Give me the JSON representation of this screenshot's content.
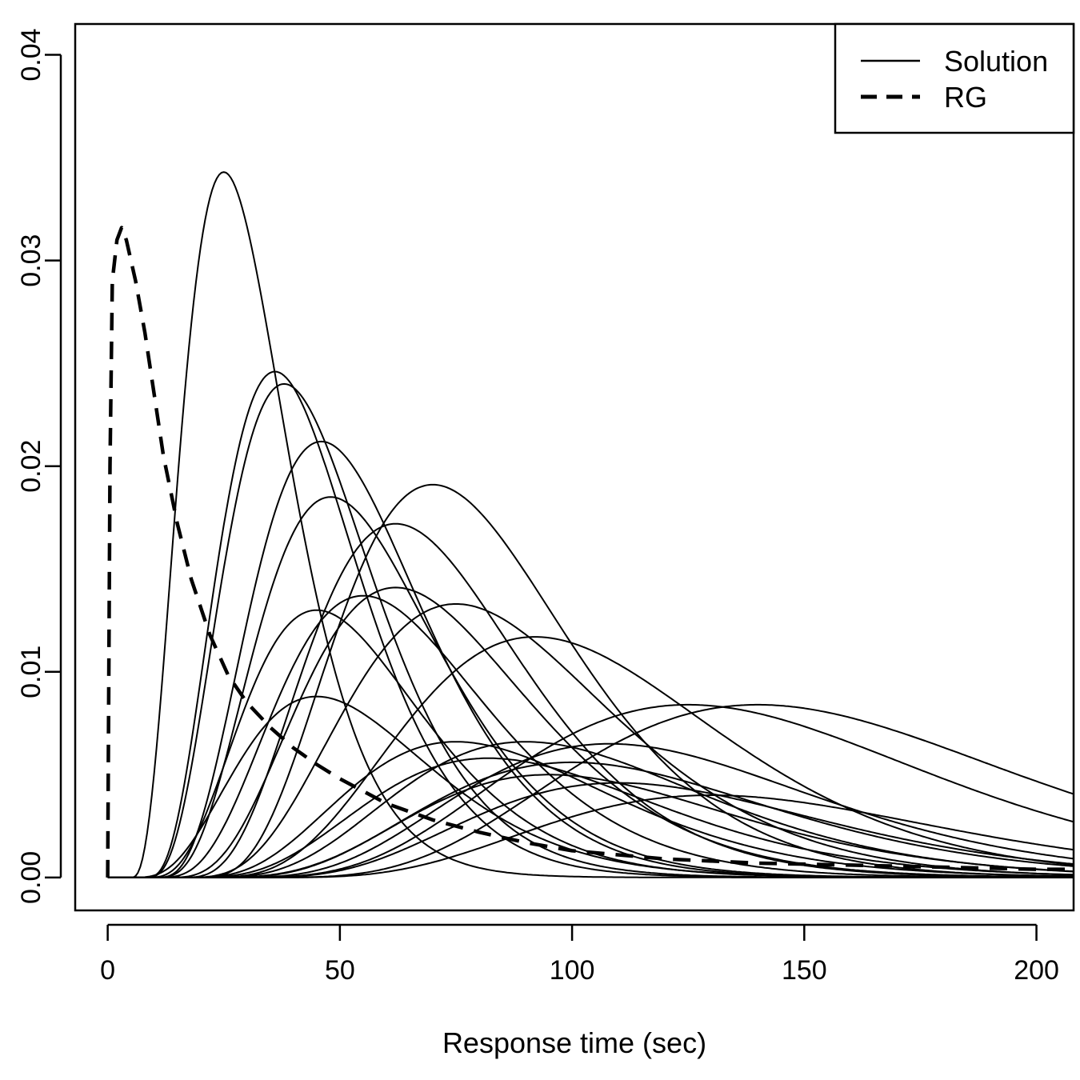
{
  "chart_data": {
    "type": "line",
    "title": "",
    "xlabel": "Response time (sec)",
    "ylabel": "",
    "xlim": [
      -7,
      208
    ],
    "ylim": [
      -0.0016,
      0.0415
    ],
    "x_ticks": [
      0,
      50,
      100,
      150,
      200
    ],
    "x_tick_labels": [
      "0",
      "50",
      "100",
      "150",
      "200"
    ],
    "y_ticks": [
      0.0,
      0.01,
      0.02,
      0.03,
      0.04
    ],
    "y_tick_labels": [
      "0.00",
      "0.01",
      "0.02",
      "0.03",
      "0.04"
    ],
    "grid": false,
    "legend": {
      "position": "top-right",
      "entries": [
        {
          "label": "Solution",
          "style": "solid"
        },
        {
          "label": "RG",
          "style": "dashed"
        }
      ]
    },
    "line_color": "#000000",
    "series": [
      {
        "style": "solid",
        "shape": "gamma",
        "start": 5,
        "mode": 25,
        "peak": 0.0343
      },
      {
        "style": "solid",
        "shape": "gamma",
        "start": 8,
        "mode": 36,
        "peak": 0.0246
      },
      {
        "style": "solid",
        "shape": "gamma",
        "start": 8,
        "mode": 38,
        "peak": 0.024
      },
      {
        "style": "solid",
        "shape": "gamma",
        "start": 10,
        "mode": 46,
        "peak": 0.0212
      },
      {
        "style": "solid",
        "shape": "gamma",
        "start": 10,
        "mode": 48,
        "peak": 0.0185
      },
      {
        "style": "solid",
        "shape": "gamma",
        "start": 15,
        "mode": 62,
        "peak": 0.0172
      },
      {
        "style": "solid",
        "shape": "gamma",
        "start": 18,
        "mode": 70,
        "peak": 0.0191
      },
      {
        "style": "solid",
        "shape": "gamma",
        "start": 8,
        "mode": 45,
        "peak": 0.013
      },
      {
        "style": "solid",
        "shape": "gamma",
        "start": 10,
        "mode": 55,
        "peak": 0.0137
      },
      {
        "style": "solid",
        "shape": "gamma",
        "start": 12,
        "mode": 62,
        "peak": 0.0141
      },
      {
        "style": "solid",
        "shape": "gamma",
        "start": 15,
        "mode": 75,
        "peak": 0.0133
      },
      {
        "style": "solid",
        "shape": "gamma",
        "start": 18,
        "mode": 92,
        "peak": 0.0117
      },
      {
        "style": "solid",
        "shape": "gamma",
        "start": 5,
        "mode": 45,
        "peak": 0.0088
      },
      {
        "style": "solid",
        "shape": "gamma",
        "start": 22,
        "mode": 125,
        "peak": 0.0084
      },
      {
        "style": "solid",
        "shape": "gamma",
        "start": 28,
        "mode": 140,
        "peak": 0.0084
      },
      {
        "style": "solid",
        "shape": "gamma",
        "start": 15,
        "mode": 75,
        "peak": 0.0066
      },
      {
        "style": "solid",
        "shape": "gamma",
        "start": 18,
        "mode": 90,
        "peak": 0.0066
      },
      {
        "style": "solid",
        "shape": "gamma",
        "start": 22,
        "mode": 108,
        "peak": 0.0065
      },
      {
        "style": "solid",
        "shape": "gamma",
        "start": 15,
        "mode": 82,
        "peak": 0.0058
      },
      {
        "style": "solid",
        "shape": "gamma",
        "start": 18,
        "mode": 100,
        "peak": 0.0056
      },
      {
        "style": "solid",
        "shape": "gamma",
        "start": 20,
        "mode": 95,
        "peak": 0.005
      },
      {
        "style": "solid",
        "shape": "gamma",
        "start": 25,
        "mode": 110,
        "peak": 0.0046
      },
      {
        "style": "solid",
        "shape": "gamma",
        "start": 30,
        "mode": 130,
        "peak": 0.004
      },
      {
        "style": "dashed",
        "x": [
          0,
          0.5,
          1,
          2,
          3,
          4,
          5,
          6,
          8,
          10,
          12,
          15,
          18,
          22,
          26,
          30,
          35,
          40,
          45,
          50,
          55,
          60,
          70,
          80,
          90,
          100,
          120,
          140,
          160,
          180,
          200,
          208
        ],
        "y": [
          0.0,
          0.02,
          0.029,
          0.031,
          0.0316,
          0.031,
          0.03,
          0.029,
          0.0265,
          0.0235,
          0.0205,
          0.0172,
          0.0145,
          0.0118,
          0.0098,
          0.0085,
          0.0073,
          0.0063,
          0.0055,
          0.0048,
          0.0042,
          0.0036,
          0.0028,
          0.0022,
          0.0017,
          0.0013,
          0.0009,
          0.0007,
          0.0006,
          0.0005,
          0.0004,
          0.0004
        ]
      }
    ]
  }
}
